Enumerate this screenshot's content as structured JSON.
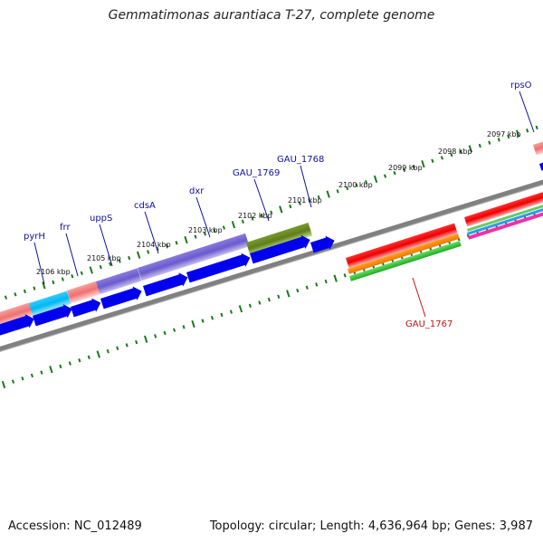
{
  "header": {
    "title": "Gemmatimonas aurantiaca T-27, complete genome"
  },
  "footer": {
    "accession_label": "Accession:",
    "accession_value": "NC_012489",
    "topology_label": "Topology:",
    "topology_value": "circular;",
    "length_label": "Length:",
    "length_value": "4,636,964 bp;",
    "genes_label": "Genes:",
    "genes_value": "3,987"
  },
  "colors": {
    "backbone": "#808080",
    "tick": "#1a7a1a",
    "gene_label_forward": "#1010a0",
    "gene_label_reverse": "#cc1010",
    "cds_arrow": "#0000ee",
    "gene_red": "#ee1111",
    "gene_orange": "#ee8800",
    "gene_green": "#33bb33",
    "gene_purple": "#6a5acd",
    "gene_olive": "#6b8e23",
    "gene_cyan": "#00bfff",
    "gene_pink": "#f08080"
  },
  "kbp_labels": [
    "2106 kbp",
    "2105 kbp",
    "2104 kbp",
    "2103 kbp",
    "2102 kbp",
    "2101 kbp",
    "2100 kbp",
    "2099 kbp",
    "2098 kbp",
    "2097 kbp"
  ],
  "gene_labels_forward": [
    "pyrH",
    "frr",
    "uppS",
    "cdsA",
    "dxr",
    "GAU_1769",
    "GAU_1768",
    "rpsO"
  ],
  "gene_labels_reverse": [
    "GAU_1767"
  ]
}
